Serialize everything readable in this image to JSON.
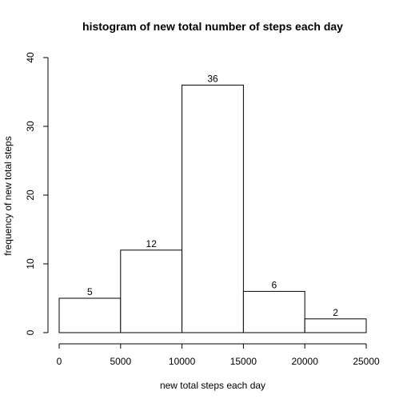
{
  "chart_data": {
    "type": "bar",
    "title": "histogram of new total number of steps each day",
    "xlabel": "new total steps each day",
    "ylabel": "frequency of new total steps",
    "bins": [
      {
        "start": 0,
        "end": 5000,
        "count": 5,
        "label": "5"
      },
      {
        "start": 5000,
        "end": 10000,
        "count": 12,
        "label": "12"
      },
      {
        "start": 10000,
        "end": 15000,
        "count": 36,
        "label": "36"
      },
      {
        "start": 15000,
        "end": 20000,
        "count": 6,
        "label": "6"
      },
      {
        "start": 20000,
        "end": 25000,
        "count": 2,
        "label": "2"
      }
    ],
    "xlim": [
      0,
      25000
    ],
    "ylim": [
      0,
      40
    ],
    "xticks": [
      "0",
      "5000",
      "10000",
      "15000",
      "20000",
      "25000"
    ],
    "yticks": [
      "0",
      "10",
      "20",
      "30",
      "40"
    ],
    "bar_fill": "#ffffff",
    "bar_stroke": "#000000",
    "grid": false,
    "legend": "none"
  }
}
